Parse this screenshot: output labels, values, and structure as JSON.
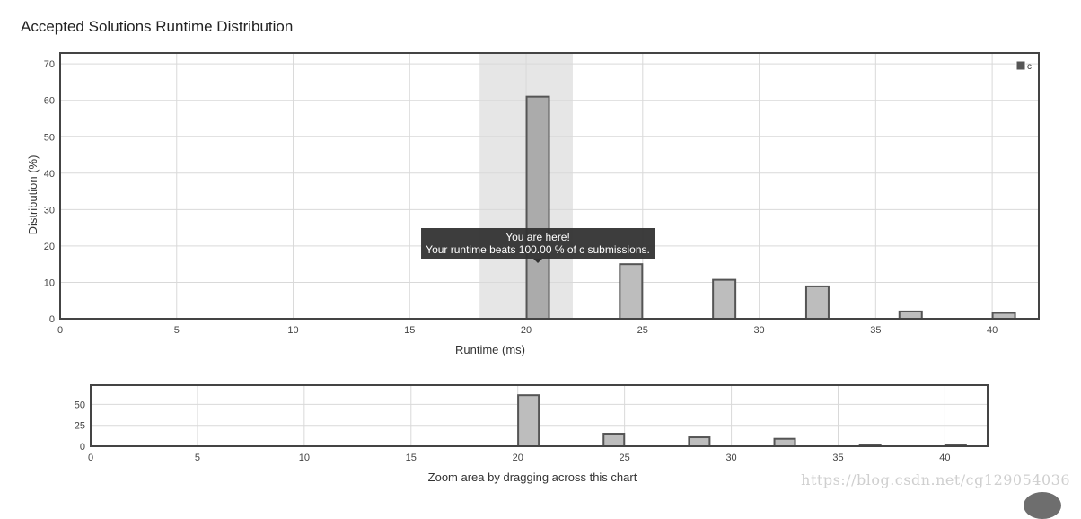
{
  "page": {
    "title": "Accepted Solutions Runtime Distribution",
    "watermark": "https://blog.csdn.net/cg129054036"
  },
  "tooltip": {
    "line1": "You are here!",
    "line2": "Your runtime beats 100.00 % of c submissions."
  },
  "colors": {
    "bar_fill": "#bdbdbd",
    "bar_fill_active": "#ababab",
    "bar_stroke": "#555555",
    "highlight_band": "#e6e6e6",
    "grid": "#d9d9d9",
    "axis": "#444444",
    "tooltip_bg": "#333333"
  },
  "chart_data": [
    {
      "type": "bar",
      "title": "Accepted Solutions Runtime Distribution",
      "xlabel": "Runtime (ms)",
      "ylabel": "Distribution (%)",
      "xlim": [
        0,
        42
      ],
      "ylim": [
        0,
        73
      ],
      "xticks": [
        0,
        5,
        10,
        15,
        20,
        25,
        30,
        35,
        40
      ],
      "yticks": [
        0,
        10,
        20,
        30,
        40,
        50,
        60,
        70
      ],
      "legend": {
        "entries": [
          "c"
        ],
        "position": "top-right"
      },
      "highlight": {
        "x_from": 18,
        "x_to": 22
      },
      "active_x": 20.5,
      "grid": true,
      "series": [
        {
          "name": "c",
          "x": [
            20.5,
            24.5,
            28.5,
            32.5,
            36.5,
            40.5
          ],
          "values": [
            61,
            15,
            10.7,
            8.9,
            2,
            1.6
          ]
        }
      ]
    },
    {
      "type": "bar",
      "xlabel": "Zoom area by dragging across this chart",
      "xlim": [
        0,
        42
      ],
      "ylim": [
        0,
        73
      ],
      "xticks": [
        0,
        5,
        10,
        15,
        20,
        25,
        30,
        35,
        40
      ],
      "yticks": [
        0,
        25,
        50
      ],
      "grid": true,
      "series": [
        {
          "x": [
            20.5,
            24.5,
            28.5,
            32.5,
            36.5,
            40.5
          ],
          "values": [
            61,
            15,
            10.7,
            8.9,
            2,
            1.6
          ]
        }
      ]
    }
  ]
}
